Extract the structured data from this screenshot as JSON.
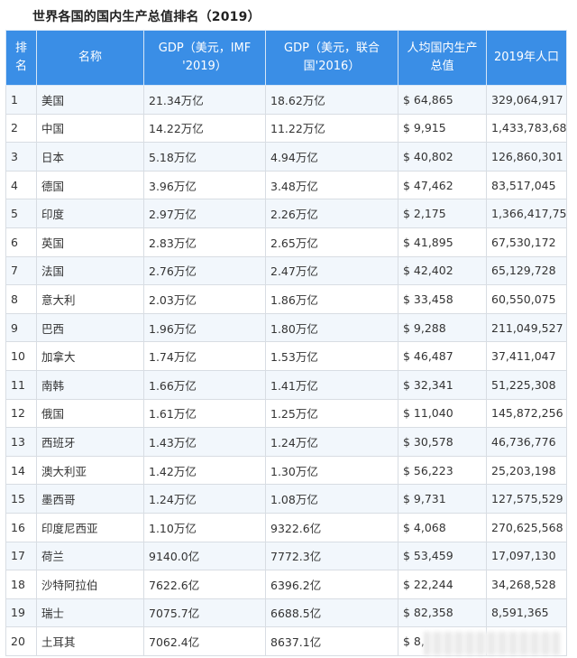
{
  "title": "世界各国的国内生产总值排名（2019）",
  "headers": [
    "排名",
    "名称",
    "GDP（美元，IMF '2019）",
    "GDP（美元，联合国'2016）",
    "人均国内生产总值",
    "2019年人口"
  ],
  "rows": [
    [
      "1",
      "美国",
      "21.34万亿",
      "18.62万亿",
      "$ 64,865",
      "329,064,917"
    ],
    [
      "2",
      "中国",
      "14.22万亿",
      "11.22万亿",
      "$ 9,915",
      "1,433,783,686"
    ],
    [
      "3",
      "日本",
      "5.18万亿",
      "4.94万亿",
      "$ 40,802",
      "126,860,301"
    ],
    [
      "4",
      "德国",
      "3.96万亿",
      "3.48万亿",
      "$ 47,462",
      "83,517,045"
    ],
    [
      "5",
      "印度",
      "2.97万亿",
      "2.26万亿",
      "$ 2,175",
      "1,366,417,754"
    ],
    [
      "6",
      "英国",
      "2.83万亿",
      "2.65万亿",
      "$ 41,895",
      "67,530,172"
    ],
    [
      "7",
      "法国",
      "2.76万亿",
      "2.47万亿",
      "$ 42,402",
      "65,129,728"
    ],
    [
      "8",
      "意大利",
      "2.03万亿",
      "1.86万亿",
      "$ 33,458",
      "60,550,075"
    ],
    [
      "9",
      "巴西",
      "1.96万亿",
      "1.80万亿",
      "$ 9,288",
      "211,049,527"
    ],
    [
      "10",
      "加拿大",
      "1.74万亿",
      "1.53万亿",
      "$ 46,487",
      "37,411,047"
    ],
    [
      "11",
      "南韩",
      "1.66万亿",
      "1.41万亿",
      "$ 32,341",
      "51,225,308"
    ],
    [
      "12",
      "俄国",
      "1.61万亿",
      "1.25万亿",
      "$ 11,040",
      "145,872,256"
    ],
    [
      "13",
      "西班牙",
      "1.43万亿",
      "1.24万亿",
      "$ 30,578",
      "46,736,776"
    ],
    [
      "14",
      "澳大利亚",
      "1.42万亿",
      "1.30万亿",
      "$ 56,223",
      "25,203,198"
    ],
    [
      "15",
      "墨西哥",
      "1.24万亿",
      "1.08万亿",
      "$ 9,731",
      "127,575,529"
    ],
    [
      "16",
      "印度尼西亚",
      "1.10万亿",
      "9322.6亿",
      "$ 4,068",
      "270,625,568"
    ],
    [
      "17",
      "荷兰",
      "9140.0亿",
      "7772.3亿",
      "$ 53,459",
      "17,097,130"
    ],
    [
      "18",
      "沙特阿拉伯",
      "7622.6亿",
      "6396.2亿",
      "$ 22,244",
      "34,268,528"
    ],
    [
      "19",
      "瑞士",
      "7075.7亿",
      "6688.5亿",
      "$ 82,358",
      "8,591,365"
    ],
    [
      "20",
      "土耳其",
      "7062.4亿",
      "8637.1亿",
      "$ 8,",
      ""
    ]
  ]
}
